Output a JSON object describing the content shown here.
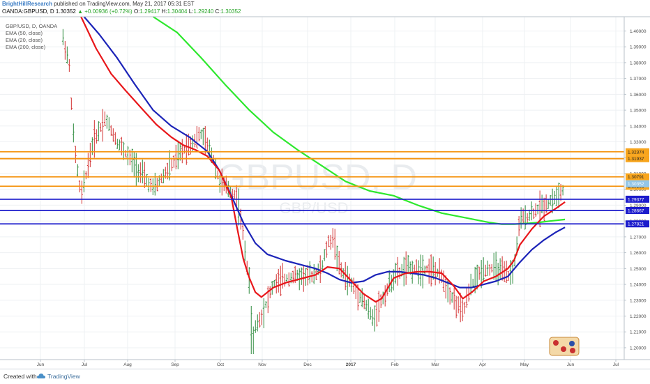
{
  "header": {
    "author": "BrightHillResearch",
    "published": "published on TradingView.com, May 21, 2017 05:31 EST",
    "symbol": "OANDA:GBPUSD, D",
    "last": "1.30352",
    "change": "▲ +0.00936 (+0.72%)",
    "o_label": "O:",
    "o_value": "1.29417",
    "h_label": "H:",
    "h_value": "1.30404",
    "l_label": "L:",
    "l_value": "1.29240",
    "c_label": "C:",
    "c_value": "1.30352"
  },
  "legend": [
    "GBP/USD, D, OANDA",
    "EMA (50, close)",
    "EMA (20, close)",
    "EMA (200, close)"
  ],
  "watermark": {
    "symbol": "GBPUSD, D",
    "pair": "GBP/USD"
  },
  "footer": {
    "created_with": "Created with",
    "brand": "TradingView"
  },
  "colors": {
    "bull": "#2e8b3e",
    "bear": "#d23232",
    "ema20": "#e8161a",
    "ema50": "#1c24b8",
    "ema200": "#2ee82e",
    "resistance": "#f5930f",
    "support": "#1b1bcc",
    "resistance_label_bg": "#f8a51c",
    "support_label_bg": "#1c1ccc",
    "last_label_bg": "#93c6e8"
  },
  "chart_data": {
    "type": "candlestick",
    "title": "GBP/USD, D, OANDA",
    "x_ticks": [
      "Jun",
      "Jul",
      "Aug",
      "Sep",
      "Oct",
      "Nov",
      "Dec",
      "2017",
      "Feb",
      "Mar",
      "Apr",
      "May",
      "Jun",
      "Jul"
    ],
    "y_ticks": [
      "1.40000",
      "1.39000",
      "1.38000",
      "1.37000",
      "1.36000",
      "1.35000",
      "1.34000",
      "1.33000",
      "1.32000",
      "1.31000",
      "1.30000",
      "1.29000",
      "1.28000",
      "1.27000",
      "1.26000",
      "1.25000",
      "1.24000",
      "1.23000",
      "1.22000",
      "1.21000",
      "1.20000"
    ],
    "ylim": [
      1.1925,
      1.409
    ],
    "horizontal_levels": [
      {
        "value": 1.32374,
        "label": "1.32374",
        "kind": "resistance"
      },
      {
        "value": 1.31937,
        "label": "1.31937",
        "kind": "resistance"
      },
      {
        "value": 1.30791,
        "label": "1.30791",
        "kind": "resistance"
      },
      {
        "value": 1.30196,
        "label": "1.30196",
        "kind": "resistance"
      },
      {
        "value": 1.29377,
        "label": "1.29377",
        "kind": "support"
      },
      {
        "value": 1.28667,
        "label": "1.28667",
        "kind": "support"
      },
      {
        "value": 1.27821,
        "label": "1.27821",
        "kind": "support"
      }
    ],
    "last_price": {
      "value": 1.30352,
      "label": "1.30352"
    },
    "ema200": [
      [
        0.22,
        1.409
      ],
      [
        0.24,
        1.4022
      ],
      [
        0.28,
        1.391
      ],
      [
        0.34,
        1.373
      ],
      [
        0.4,
        1.3545
      ],
      [
        0.46,
        1.3395
      ],
      [
        0.5,
        1.331
      ],
      [
        0.55,
        1.326
      ],
      [
        0.595,
        1.3205
      ],
      [
        0.625,
        1.3152
      ],
      [
        0.65,
        1.3099
      ],
      [
        0.675,
        1.3052
      ],
      [
        0.7,
        1.3015
      ],
      [
        0.745,
        1.296
      ],
      [
        0.78,
        1.291
      ],
      [
        0.83,
        1.284
      ],
      [
        0.87,
        1.2798
      ],
      [
        0.92,
        1.278
      ],
      [
        0.96,
        1.279
      ],
      [
        0.99,
        1.2814
      ]
    ],
    "ema50": [
      [
        0.105,
        1.409
      ],
      [
        0.13,
        1.4
      ],
      [
        0.17,
        1.382
      ],
      [
        0.21,
        1.363
      ],
      [
        0.26,
        1.346
      ],
      [
        0.31,
        1.3345
      ],
      [
        0.36,
        1.329
      ],
      [
        0.4,
        1.3255
      ],
      [
        0.45,
        1.324
      ],
      [
        0.5,
        1.3205
      ],
      [
        0.55,
        1.3135
      ],
      [
        0.6,
        1.303
      ],
      [
        0.63,
        1.291
      ],
      [
        0.66,
        1.2765
      ],
      [
        0.69,
        1.268
      ],
      [
        0.73,
        1.2615
      ],
      [
        0.78,
        1.2585
      ],
      [
        0.83,
        1.2556
      ],
      [
        0.87,
        1.252
      ],
      [
        0.91,
        1.25
      ],
      [
        0.945,
        1.2505
      ],
      [
        1.0,
        1.2495
      ]
    ],
    "ema20": [
      [
        0.1,
        1.409
      ],
      [
        0.125,
        1.389
      ],
      [
        0.15,
        1.373
      ],
      [
        0.175,
        1.362
      ],
      [
        0.2,
        1.3515
      ],
      [
        0.225,
        1.341
      ],
      [
        0.25,
        1.333
      ],
      [
        0.275,
        1.324
      ],
      [
        0.3,
        1.316
      ],
      [
        0.325,
        1.3108
      ],
      [
        0.35,
        1.307
      ],
      [
        0.375,
        1.3115
      ],
      [
        0.39,
        1.315
      ],
      [
        0.41,
        1.312
      ],
      [
        0.43,
        1.3165
      ],
      [
        0.45,
        1.3205
      ],
      [
        0.47,
        1.324
      ],
      [
        0.485,
        1.325
      ],
      [
        0.5,
        1.3245
      ],
      [
        0.52,
        1.321
      ],
      [
        0.54,
        1.318
      ],
      [
        0.56,
        1.319
      ],
      [
        0.58,
        1.322
      ],
      [
        0.6,
        1.324
      ],
      [
        0.62,
        1.325
      ],
      [
        0.64,
        1.3242
      ],
      [
        0.66,
        1.322
      ]
    ]
  }
}
